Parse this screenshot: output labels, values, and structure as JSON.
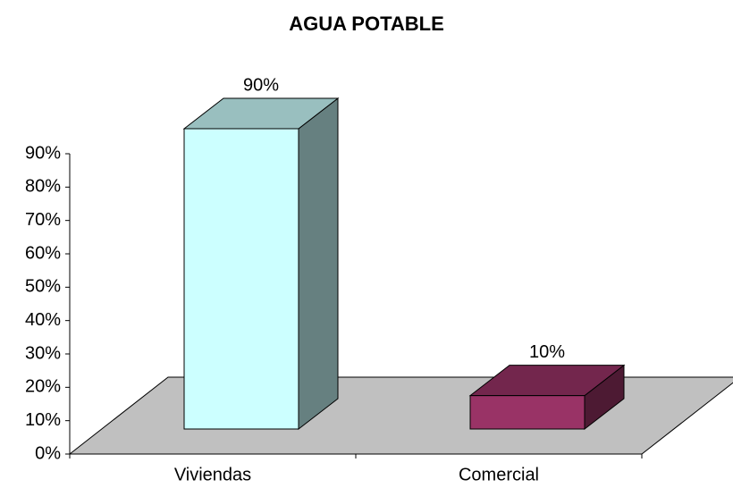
{
  "chart_data": {
    "type": "bar3d",
    "title": "AGUA POTABLE",
    "categories": [
      "Viviendas",
      "Comercial"
    ],
    "values": [
      90,
      10
    ],
    "value_labels": [
      "90%",
      "10%"
    ],
    "colors": [
      "#ccffff",
      "#993366"
    ],
    "floor_color": "#c0c0c0",
    "ylim": [
      0,
      90
    ],
    "yticks": [
      {
        "value": 0,
        "label": "0%"
      },
      {
        "value": 10,
        "label": "10%"
      },
      {
        "value": 20,
        "label": "20%"
      },
      {
        "value": 30,
        "label": "30%"
      },
      {
        "value": 40,
        "label": "40%"
      },
      {
        "value": 50,
        "label": "50%"
      },
      {
        "value": 60,
        "label": "60%"
      },
      {
        "value": 70,
        "label": "70%"
      },
      {
        "value": 80,
        "label": "80%"
      },
      {
        "value": 90,
        "label": "90%"
      }
    ]
  }
}
